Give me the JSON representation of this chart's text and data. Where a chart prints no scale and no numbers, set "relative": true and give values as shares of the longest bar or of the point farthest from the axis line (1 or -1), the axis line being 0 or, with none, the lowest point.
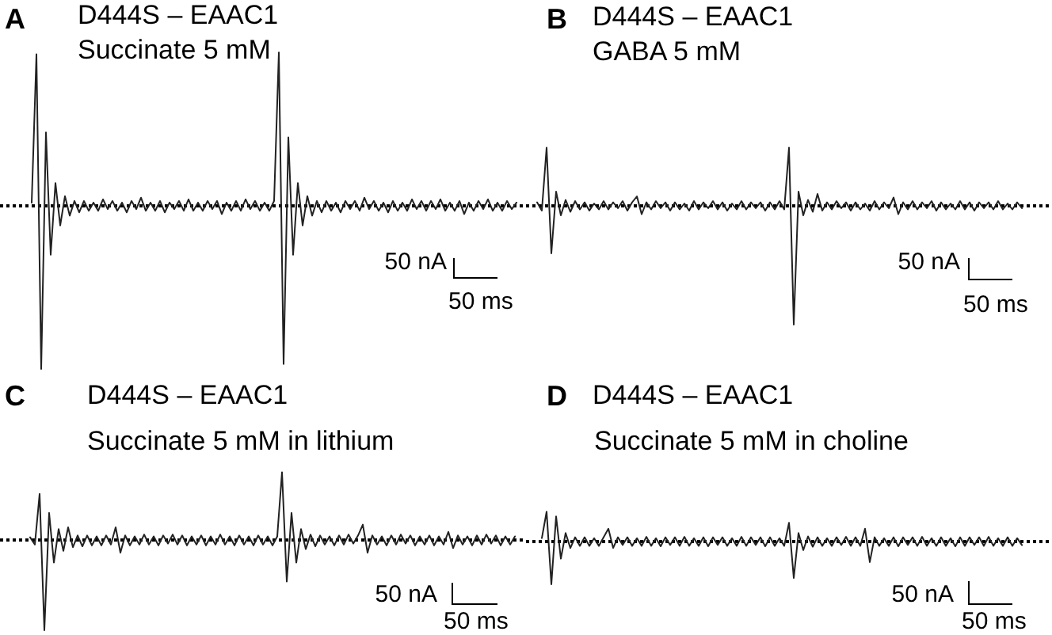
{
  "chart_data": [
    {
      "type": "line",
      "title": "D444S – EAAC1",
      "subtitle": "Succinate 5 mM",
      "annotations": [
        "A",
        "50 nA",
        "50 ms"
      ],
      "relative": true,
      "tick_labels": false,
      "marker": "none",
      "color": "#222222",
      "categories": [
        null,
        null,
        null,
        null,
        null,
        null,
        null,
        null,
        null,
        null,
        null,
        null,
        null,
        null,
        null,
        null,
        null,
        null,
        null,
        null,
        null,
        null,
        null,
        null,
        null,
        null,
        null,
        null,
        null,
        null,
        null,
        null,
        null,
        null,
        null,
        null,
        null,
        null,
        null,
        null,
        null,
        null,
        null,
        null,
        null,
        null,
        null,
        null,
        null,
        null,
        null,
        null,
        null,
        null,
        null,
        null,
        null,
        null,
        null,
        null,
        null,
        null,
        null,
        null,
        null,
        null,
        null,
        null,
        null,
        null,
        null,
        null,
        null,
        null,
        null,
        null,
        null,
        null,
        null,
        null,
        null,
        null,
        null,
        null,
        null,
        null,
        null,
        null,
        null,
        null,
        null,
        null,
        null,
        null,
        null,
        null,
        null,
        null,
        null,
        null,
        null,
        null,
        null
      ],
      "values": [
        0.02,
        0.93,
        -1.0,
        0.45,
        -0.3,
        0.14,
        -0.12,
        0.06,
        -0.06,
        0.03,
        -0.04,
        0.03,
        -0.03,
        0.02,
        -0.03,
        0.04,
        -0.02,
        0.03,
        -0.03,
        0.02,
        -0.04,
        0.03,
        -0.02,
        0.05,
        -0.03,
        0.02,
        -0.03,
        0.03,
        -0.04,
        0.02,
        -0.02,
        0.03,
        -0.03,
        0.04,
        -0.03,
        0.02,
        -0.03,
        0.03,
        -0.02,
        0.03,
        -0.05,
        0.02,
        -0.03,
        0.03,
        -0.03,
        0.04,
        -0.02,
        0.03,
        -0.03,
        0.02,
        -0.03,
        0.03,
        0.94,
        -0.97,
        0.42,
        -0.3,
        0.14,
        -0.12,
        0.06,
        -0.06,
        0.03,
        -0.04,
        0.03,
        -0.03,
        0.02,
        -0.04,
        0.03,
        -0.02,
        0.03,
        -0.03,
        0.05,
        -0.02,
        0.03,
        -0.03,
        0.02,
        -0.04,
        0.03,
        -0.03,
        0.02,
        -0.03,
        0.04,
        -0.02,
        0.03,
        -0.03,
        0.03,
        -0.02,
        0.04,
        -0.03,
        0.02,
        -0.03,
        0.03,
        -0.05,
        0.02,
        -0.03,
        0.03,
        -0.02,
        0.04,
        -0.03,
        0.02,
        -0.03,
        0.03,
        -0.02,
        0.02
      ],
      "ref_lines": [
        {
          "axis": "y",
          "value": 0,
          "line_style": "dotted",
          "color": "#000000"
        }
      ]
    },
    {
      "type": "line",
      "title": "D444S – EAAC1",
      "subtitle": "GABA 5 mM",
      "annotations": [
        "B",
        "50 nA",
        "50 ms"
      ],
      "relative": true,
      "tick_labels": false,
      "marker": "none",
      "color": "#222222",
      "categories": [
        null,
        null,
        null,
        null,
        null,
        null,
        null,
        null,
        null,
        null,
        null,
        null,
        null,
        null,
        null,
        null,
        null,
        null,
        null,
        null,
        null,
        null,
        null,
        null,
        null,
        null,
        null,
        null,
        null,
        null,
        null,
        null,
        null,
        null,
        null,
        null,
        null,
        null,
        null,
        null,
        null,
        null,
        null,
        null,
        null,
        null,
        null,
        null,
        null,
        null,
        null,
        null,
        null,
        null,
        null,
        null,
        null,
        null,
        null,
        null,
        null,
        null,
        null,
        null,
        null,
        null,
        null,
        null,
        null,
        null,
        null,
        null,
        null,
        null,
        null,
        null,
        null,
        null,
        null,
        null,
        null,
        null,
        null,
        null,
        null,
        null,
        null,
        null,
        null,
        null,
        null,
        null,
        null,
        null,
        null,
        null,
        null,
        null,
        null,
        null,
        null,
        null,
        null
      ],
      "values": [
        0.03,
        -0.04,
        0.49,
        -0.4,
        0.12,
        -0.08,
        0.05,
        -0.05,
        0.04,
        -0.03,
        0.03,
        -0.04,
        0.02,
        -0.03,
        0.04,
        -0.03,
        0.03,
        -0.02,
        0.04,
        -0.04,
        0.03,
        0.08,
        -0.07,
        0.03,
        -0.03,
        0.04,
        -0.02,
        0.03,
        -0.04,
        0.03,
        -0.03,
        0.02,
        -0.04,
        0.04,
        -0.03,
        0.03,
        -0.02,
        0.04,
        -0.03,
        0.03,
        -0.04,
        0.02,
        -0.03,
        0.04,
        -0.03,
        0.03,
        -0.02,
        0.03,
        -0.04,
        0.03,
        -0.03,
        0.04,
        -0.03,
        0.49,
        -1.0,
        0.12,
        -0.08,
        0.05,
        -0.05,
        0.1,
        -0.04,
        0.03,
        -0.03,
        0.04,
        -0.02,
        0.03,
        -0.04,
        0.03,
        -0.03,
        0.02,
        -0.04,
        0.04,
        -0.03,
        0.03,
        -0.02,
        0.07,
        -0.07,
        0.03,
        -0.03,
        0.04,
        -0.03,
        0.03,
        -0.02,
        0.04,
        -0.04,
        0.03,
        -0.03,
        0.02,
        -0.03,
        0.04,
        -0.03,
        0.03,
        -0.04,
        0.03,
        -0.02,
        0.03,
        -0.03,
        0.04,
        -0.03,
        0.02,
        -0.03,
        0.03,
        -0.02
      ],
      "ref_lines": [
        {
          "axis": "y",
          "value": 0,
          "line_style": "dotted",
          "color": "#000000"
        }
      ]
    },
    {
      "type": "line",
      "title": "D444S – EAAC1",
      "subtitle": "Succinate 5 mM in lithium",
      "annotations": [
        "C",
        "50 nA",
        "50 ms"
      ],
      "relative": true,
      "tick_labels": false,
      "marker": "none",
      "color": "#222222",
      "categories": [
        null,
        null,
        null,
        null,
        null,
        null,
        null,
        null,
        null,
        null,
        null,
        null,
        null,
        null,
        null,
        null,
        null,
        null,
        null,
        null,
        null,
        null,
        null,
        null,
        null,
        null,
        null,
        null,
        null,
        null,
        null,
        null,
        null,
        null,
        null,
        null,
        null,
        null,
        null,
        null,
        null,
        null,
        null,
        null,
        null,
        null,
        null,
        null,
        null,
        null,
        null,
        null,
        null,
        null,
        null,
        null,
        null,
        null,
        null,
        null,
        null,
        null,
        null,
        null,
        null,
        null,
        null,
        null,
        null,
        null,
        null,
        null,
        null,
        null,
        null,
        null,
        null,
        null,
        null,
        null,
        null,
        null,
        null,
        null,
        null,
        null,
        null,
        null,
        null,
        null,
        null,
        null,
        null,
        null,
        null,
        null,
        null,
        null,
        null,
        null,
        null,
        null,
        null
      ],
      "values": [
        0.03,
        -0.05,
        0.51,
        -1.0,
        0.3,
        -0.25,
        0.12,
        -0.12,
        0.14,
        -0.08,
        0.05,
        -0.07,
        0.05,
        -0.06,
        0.04,
        -0.06,
        0.05,
        -0.05,
        0.14,
        -0.14,
        0.05,
        -0.06,
        0.04,
        -0.05,
        0.06,
        -0.05,
        0.04,
        -0.06,
        0.05,
        -0.04,
        0.06,
        -0.05,
        0.05,
        -0.06,
        0.04,
        -0.05,
        0.05,
        -0.06,
        0.04,
        -0.05,
        0.06,
        -0.05,
        0.04,
        -0.06,
        0.05,
        -0.05,
        0.04,
        -0.06,
        0.05,
        -0.05,
        0.04,
        -0.06,
        0.04,
        0.75,
        -0.46,
        0.3,
        -0.25,
        0.12,
        -0.1,
        0.06,
        -0.07,
        0.05,
        -0.05,
        0.04,
        -0.06,
        0.05,
        -0.05,
        0.06,
        -0.04,
        0.05,
        0.17,
        -0.14,
        0.05,
        -0.05,
        0.04,
        -0.06,
        0.05,
        -0.05,
        0.06,
        -0.04,
        0.05,
        -0.06,
        0.04,
        -0.05,
        0.05,
        -0.06,
        0.04,
        -0.05,
        0.09,
        -0.09,
        0.05,
        -0.05,
        0.04,
        -0.06,
        0.05,
        -0.05,
        0.06,
        -0.04,
        0.05,
        -0.06,
        0.04,
        -0.05,
        0.04
      ],
      "ref_lines": [
        {
          "axis": "y",
          "value": 0,
          "line_style": "dotted",
          "color": "#000000"
        }
      ]
    },
    {
      "type": "line",
      "title": "D444S – EAAC1",
      "subtitle": "Succinate 5 mM in choline",
      "annotations": [
        "D",
        "50 nA",
        "50 ms"
      ],
      "relative": true,
      "tick_labels": false,
      "marker": "none",
      "color": "#222222",
      "categories": [
        null,
        null,
        null,
        null,
        null,
        null,
        null,
        null,
        null,
        null,
        null,
        null,
        null,
        null,
        null,
        null,
        null,
        null,
        null,
        null,
        null,
        null,
        null,
        null,
        null,
        null,
        null,
        null,
        null,
        null,
        null,
        null,
        null,
        null,
        null,
        null,
        null,
        null,
        null,
        null,
        null,
        null,
        null,
        null,
        null,
        null,
        null,
        null,
        null,
        null,
        null,
        null,
        null,
        null,
        null,
        null,
        null,
        null,
        null,
        null,
        null,
        null,
        null,
        null,
        null,
        null,
        null,
        null,
        null,
        null,
        null,
        null,
        null,
        null,
        null,
        null,
        null,
        null,
        null,
        null,
        null,
        null,
        null,
        null,
        null,
        null,
        null,
        null,
        null,
        null,
        null,
        null,
        null,
        null,
        null,
        null,
        null,
        null,
        null,
        null,
        null,
        null
      ],
      "values": [
        0.08,
        0.7,
        -1.0,
        0.59,
        -0.4,
        0.2,
        -0.15,
        0.1,
        -0.1,
        0.1,
        -0.1,
        0.08,
        -0.1,
        0.1,
        0.3,
        -0.15,
        0.1,
        -0.08,
        0.1,
        -0.1,
        0.08,
        -0.1,
        0.11,
        -0.1,
        0.08,
        -0.11,
        0.1,
        -0.08,
        0.1,
        -0.1,
        0.11,
        -0.1,
        0.08,
        -0.1,
        0.1,
        -0.11,
        0.1,
        -0.08,
        0.1,
        -0.1,
        0.08,
        -0.1,
        0.11,
        -0.1,
        0.1,
        -0.08,
        0.1,
        -0.11,
        0.1,
        -0.1,
        0.08,
        -0.1,
        0.44,
        -0.85,
        0.2,
        -0.2,
        0.12,
        -0.12,
        0.1,
        -0.1,
        0.08,
        -0.1,
        0.1,
        -0.08,
        0.11,
        -0.1,
        0.1,
        -0.1,
        0.3,
        -0.48,
        0.1,
        -0.1,
        0.08,
        -0.1,
        0.1,
        -0.11,
        0.1,
        -0.08,
        0.1,
        -0.1,
        0.11,
        -0.1,
        0.08,
        -0.1,
        0.1,
        -0.1,
        0.08,
        -0.11,
        0.1,
        -0.1,
        0.1,
        -0.08,
        0.1,
        -0.1,
        0.11,
        -0.1,
        0.08,
        -0.1,
        0.1,
        -0.1,
        0.08,
        -0.08
      ],
      "ref_lines": [
        {
          "axis": "y",
          "value": 0,
          "line_style": "dotted",
          "color": "#000000"
        }
      ]
    }
  ]
}
